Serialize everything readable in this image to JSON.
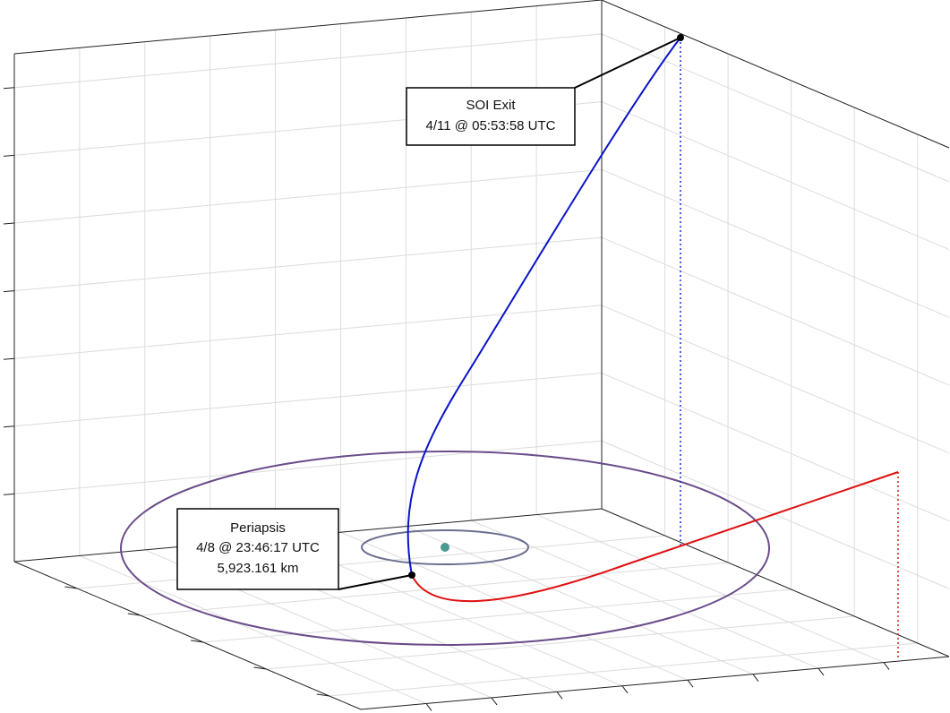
{
  "annotations": [
    {
      "lines": [
        "SOI Exit",
        "4/11 @ 05:53:58 UTC"
      ]
    },
    {
      "lines": [
        "Periapsis",
        "4/8 @ 23:46:17 UTC",
        "5,923.161 km"
      ]
    }
  ]
}
